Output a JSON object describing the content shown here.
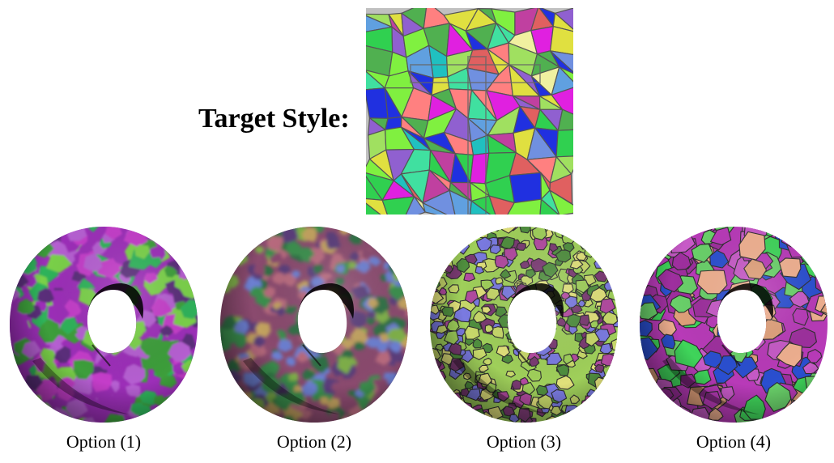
{
  "target": {
    "label": "Target Style:"
  },
  "options": [
    {
      "caption": "Option (1)",
      "palette": [
        "#9c2fb8",
        "#2fb35a",
        "#7ad14a",
        "#c43cc9",
        "#5a2d7a",
        "#3e9e3a",
        "#b55fd1"
      ],
      "pattern": "blotchy"
    },
    {
      "caption": "Option (2)",
      "palette": [
        "#8a4a6e",
        "#3b8f4e",
        "#6c7fd1",
        "#b86a7e",
        "#2f6f45",
        "#c2a25e",
        "#5a3d7a",
        "#7fb04a"
      ],
      "pattern": "blurred-cells"
    },
    {
      "caption": "Option (3)",
      "palette": [
        "#9fcf5a",
        "#7a3a72",
        "#7a7ae0",
        "#c7d86a",
        "#4f8e3e",
        "#b24aa0",
        "#e0e07a"
      ],
      "pattern": "small-cells"
    },
    {
      "caption": "Option (4)",
      "palette": [
        "#b83ab8",
        "#3fd45a",
        "#e0a07a",
        "#2a4fd0",
        "#6ad16a",
        "#c75ac7",
        "#f0b090",
        "#9e2f9e"
      ],
      "pattern": "large-cells"
    }
  ],
  "target_palette": [
    "#e020e0",
    "#30d050",
    "#2030e0",
    "#a0e060",
    "#ff8080",
    "#40e0a0",
    "#e0e040",
    "#9060d0",
    "#60a0e0",
    "#20c0c0",
    "#c040a0",
    "#80f040",
    "#f0f0a0",
    "#50b050",
    "#e06060",
    "#7090e0"
  ],
  "colors": {
    "cell_border": "#3a3a3a",
    "hole": "#ffffff",
    "shadow": "#000000"
  }
}
